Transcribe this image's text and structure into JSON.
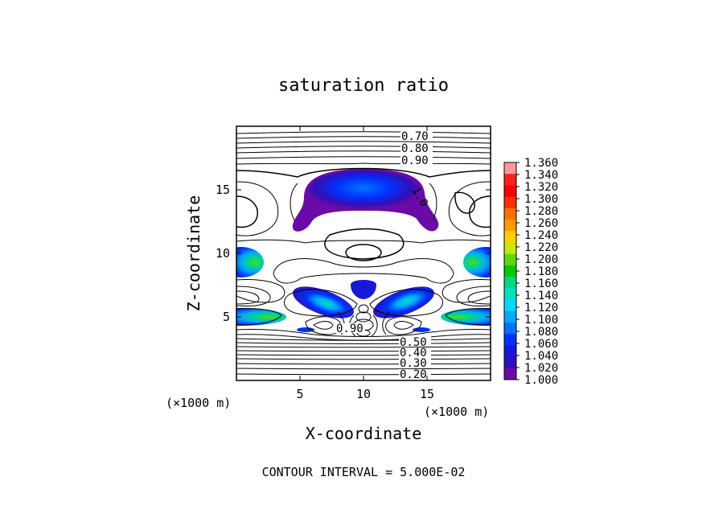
{
  "chart_data": {
    "type": "contour",
    "title": "saturation ratio",
    "xlabel": "X-coordinate",
    "ylabel": "Z-coordinate",
    "x_unit": "(×1000 m)",
    "z_unit": "(×1000 m)",
    "xlim": [
      0,
      20
    ],
    "zlim": [
      0,
      20
    ],
    "x_ticks": [
      5,
      10,
      15
    ],
    "z_ticks": [
      5,
      10,
      15
    ],
    "footer": "CONTOUR INTERVAL = 5.000E-02",
    "contour_interval": 0.05,
    "contour_labels": [
      "0.70",
      "0.80",
      "0.90",
      "1.0",
      "0.90",
      "0.50",
      "0.40",
      "0.30",
      "0.20"
    ],
    "colorbar": {
      "levels": [
        "1.360",
        "1.340",
        "1.320",
        "1.300",
        "1.280",
        "1.260",
        "1.240",
        "1.220",
        "1.200",
        "1.180",
        "1.160",
        "1.140",
        "1.120",
        "1.100",
        "1.080",
        "1.060",
        "1.040",
        "1.020",
        "1.000"
      ],
      "colors": [
        "#ff9a9a",
        "#ff2020",
        "#ff0000",
        "#ff3000",
        "#ff7000",
        "#ff9a00",
        "#ffd000",
        "#c8e800",
        "#60d800",
        "#00c800",
        "#00d880",
        "#00e0c0",
        "#00d8ff",
        "#00a8ff",
        "#0070ff",
        "#0030ff",
        "#1818d8",
        "#3010b8",
        "#6a0aa8"
      ]
    }
  }
}
